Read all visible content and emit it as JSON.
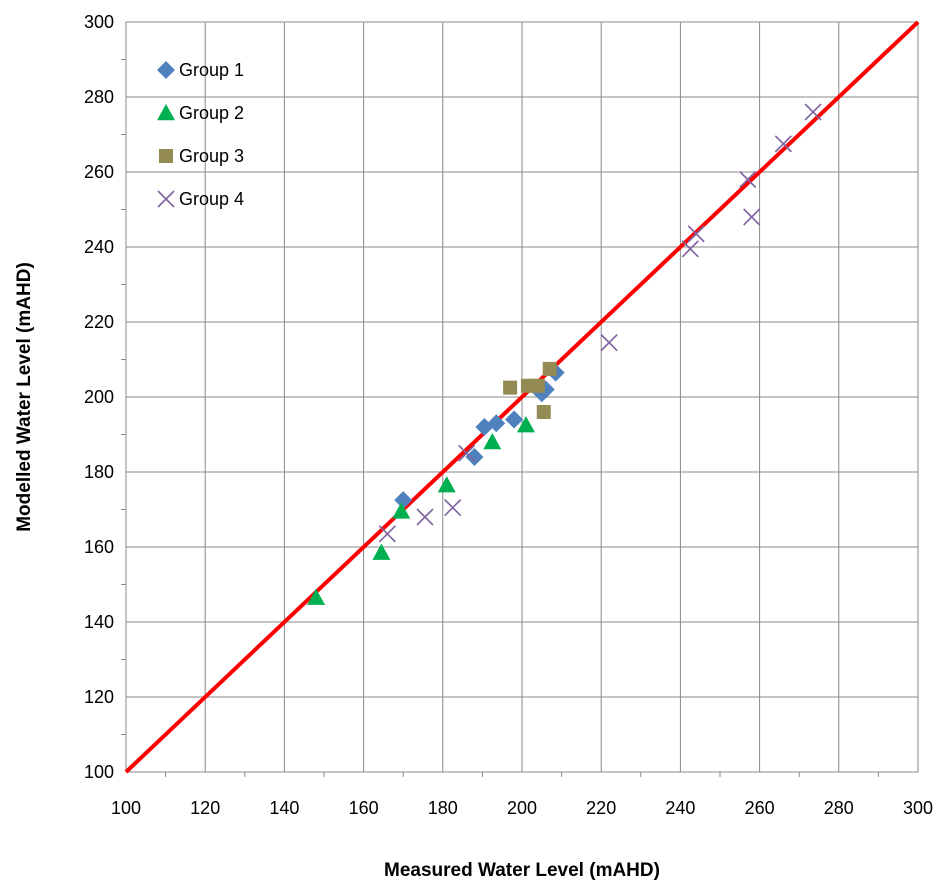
{
  "chart_data": {
    "type": "scatter",
    "title": "",
    "xlabel": "Measured Water Level (mAHD)",
    "ylabel": "Modelled Water Level (mAHD)",
    "xlim": [
      100,
      300
    ],
    "ylim": [
      100,
      300
    ],
    "xticks": [
      100,
      120,
      140,
      160,
      180,
      200,
      220,
      240,
      260,
      280,
      300
    ],
    "yticks": [
      100,
      120,
      140,
      160,
      180,
      200,
      220,
      240,
      260,
      280,
      300
    ],
    "grid": true,
    "legend_position": "top-left",
    "reference_line": {
      "from": [
        100,
        100
      ],
      "to": [
        300,
        300
      ],
      "color": "#ff0000"
    },
    "series": [
      {
        "name": "Group 1",
        "marker": "diamond",
        "color": "#4f81bd",
        "points": [
          [
            170,
            172.5
          ],
          [
            188,
            184
          ],
          [
            190.5,
            192
          ],
          [
            193.5,
            193
          ],
          [
            198,
            194
          ],
          [
            205,
            201
          ],
          [
            206,
            202
          ],
          [
            208.5,
            206.5
          ]
        ]
      },
      {
        "name": "Group 2",
        "marker": "triangle",
        "color": "#00b050",
        "points": [
          [
            148,
            146.5
          ],
          [
            164.5,
            158.5
          ],
          [
            169.5,
            169.5
          ],
          [
            181,
            176.5
          ],
          [
            192.5,
            188
          ],
          [
            201,
            192.5
          ]
        ]
      },
      {
        "name": "Group 3",
        "marker": "square",
        "color": "#948a54",
        "points": [
          [
            197,
            202.5
          ],
          [
            201.5,
            203
          ],
          [
            204,
            203
          ],
          [
            205.5,
            196
          ],
          [
            207,
            207.5
          ]
        ]
      },
      {
        "name": "Group 4",
        "marker": "x",
        "color": "#8064a2",
        "points": [
          [
            166,
            163.5
          ],
          [
            175.5,
            168
          ],
          [
            182.5,
            170.5
          ],
          [
            186,
            185
          ],
          [
            222,
            214.5
          ],
          [
            242.5,
            239.5
          ],
          [
            244,
            243.5
          ],
          [
            257,
            258
          ],
          [
            258,
            248
          ],
          [
            266,
            267.5
          ],
          [
            273.5,
            276
          ]
        ]
      }
    ]
  }
}
